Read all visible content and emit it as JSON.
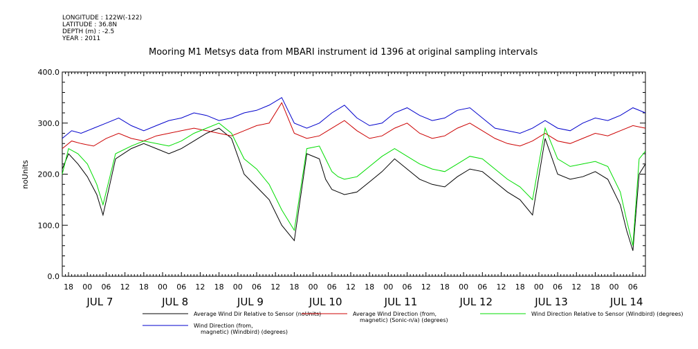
{
  "meta": {
    "longitude": "LONGITUDE : 122W(-122)",
    "latitude": "LATITUDE : 36.8N",
    "depth": "DEPTH (m) : -2.5",
    "year": "YEAR : 2011"
  },
  "chart_data": {
    "type": "line",
    "title": "Mooring M1 Metsys data from MBARI instrument id 1396 at original sampling intervals",
    "ylabel": "noUnits",
    "ylim": [
      0,
      400
    ],
    "yticks": [
      0,
      100,
      200,
      300,
      400
    ],
    "xlim_hours": [
      -8,
      178
    ],
    "x_unit": "hours from 2011-07-07 00:00",
    "hour_tick_labels": [
      {
        "h": -6,
        "label": "18"
      },
      {
        "h": 0,
        "label": "00"
      },
      {
        "h": 6,
        "label": "06"
      },
      {
        "h": 12,
        "label": "12"
      },
      {
        "h": 18,
        "label": "18"
      },
      {
        "h": 24,
        "label": "00"
      },
      {
        "h": 30,
        "label": "06"
      },
      {
        "h": 36,
        "label": "12"
      },
      {
        "h": 42,
        "label": "18"
      },
      {
        "h": 48,
        "label": "00"
      },
      {
        "h": 54,
        "label": "06"
      },
      {
        "h": 60,
        "label": "12"
      },
      {
        "h": 66,
        "label": "18"
      },
      {
        "h": 72,
        "label": "00"
      },
      {
        "h": 78,
        "label": "06"
      },
      {
        "h": 84,
        "label": "12"
      },
      {
        "h": 90,
        "label": "18"
      },
      {
        "h": 96,
        "label": "00"
      },
      {
        "h": 102,
        "label": "06"
      },
      {
        "h": 108,
        "label": "12"
      },
      {
        "h": 114,
        "label": "18"
      },
      {
        "h": 120,
        "label": "00"
      },
      {
        "h": 126,
        "label": "06"
      },
      {
        "h": 132,
        "label": "12"
      },
      {
        "h": 138,
        "label": "18"
      },
      {
        "h": 144,
        "label": "00"
      },
      {
        "h": 150,
        "label": "06"
      },
      {
        "h": 156,
        "label": "12"
      },
      {
        "h": 162,
        "label": "18"
      },
      {
        "h": 168,
        "label": "00"
      },
      {
        "h": 174,
        "label": "06"
      }
    ],
    "date_labels": [
      {
        "h": 4,
        "label": "JUL  7"
      },
      {
        "h": 28,
        "label": "JUL  8"
      },
      {
        "h": 52,
        "label": "JUL  9"
      },
      {
        "h": 76,
        "label": "JUL 10"
      },
      {
        "h": 100,
        "label": "JUL 11"
      },
      {
        "h": 124,
        "label": "JUL 12"
      },
      {
        "h": 148,
        "label": "JUL 13"
      },
      {
        "h": 172,
        "label": "JUL 14"
      }
    ],
    "series": [
      {
        "name": "Average Wind Dir Relative to Sensor (noUnits)",
        "color": "#000000",
        "x": [
          -8,
          -6,
          -3,
          0,
          3,
          5,
          9,
          14,
          18,
          22,
          26,
          30,
          34,
          38,
          42,
          46,
          50,
          54,
          58,
          62,
          66,
          70,
          74,
          76,
          78,
          80,
          82,
          86,
          90,
          94,
          98,
          102,
          106,
          108,
          110,
          114,
          118,
          122,
          126,
          130,
          134,
          138,
          142,
          146,
          150,
          154,
          158,
          162,
          166,
          170,
          172,
          174,
          176,
          178
        ],
        "values": [
          210,
          240,
          220,
          195,
          160,
          120,
          230,
          250,
          260,
          250,
          240,
          250,
          265,
          280,
          290,
          270,
          200,
          175,
          150,
          100,
          70,
          240,
          230,
          190,
          170,
          165,
          160,
          165,
          185,
          205,
          230,
          210,
          190,
          185,
          180,
          175,
          195,
          210,
          205,
          185,
          165,
          150,
          120,
          270,
          200,
          190,
          195,
          205,
          190,
          140,
          90,
          50,
          200,
          220
        ]
      },
      {
        "name": "Average Wind Direction (from, magnetic) (Sonic-n/a) (degrees)",
        "color": "#cc0000",
        "x": [
          -8,
          -5,
          -2,
          2,
          6,
          10,
          14,
          18,
          22,
          26,
          30,
          34,
          38,
          42,
          46,
          50,
          54,
          58,
          62,
          66,
          70,
          74,
          78,
          82,
          86,
          90,
          94,
          98,
          102,
          106,
          110,
          114,
          118,
          122,
          126,
          130,
          134,
          138,
          142,
          146,
          150,
          154,
          158,
          162,
          166,
          170,
          174,
          178
        ],
        "values": [
          250,
          265,
          260,
          255,
          270,
          280,
          270,
          265,
          275,
          280,
          285,
          290,
          285,
          280,
          275,
          285,
          295,
          300,
          340,
          280,
          270,
          275,
          290,
          305,
          285,
          270,
          275,
          290,
          300,
          280,
          270,
          275,
          290,
          300,
          285,
          270,
          260,
          255,
          265,
          280,
          265,
          260,
          270,
          280,
          275,
          285,
          295,
          290
        ]
      },
      {
        "name": "Wind Direction Relative to Sensor (Windbird) (degrees)",
        "color": "#00dd00",
        "x": [
          -8,
          -6,
          -3,
          0,
          3,
          5,
          9,
          14,
          18,
          22,
          26,
          30,
          34,
          38,
          42,
          46,
          50,
          54,
          58,
          62,
          66,
          70,
          74,
          76,
          78,
          80,
          82,
          86,
          90,
          94,
          98,
          102,
          106,
          108,
          110,
          114,
          118,
          122,
          126,
          130,
          134,
          138,
          142,
          146,
          150,
          154,
          158,
          162,
          166,
          170,
          172,
          174,
          176,
          178
        ],
        "values": [
          200,
          250,
          240,
          220,
          180,
          140,
          240,
          255,
          265,
          260,
          255,
          265,
          280,
          290,
          300,
          280,
          230,
          210,
          180,
          130,
          90,
          250,
          255,
          230,
          205,
          195,
          190,
          195,
          215,
          235,
          250,
          235,
          220,
          215,
          210,
          205,
          220,
          235,
          230,
          210,
          190,
          175,
          150,
          290,
          230,
          215,
          220,
          225,
          215,
          165,
          110,
          60,
          230,
          245
        ]
      },
      {
        "name": "Wind Direction (from, magnetic) (Windbird) (degrees)",
        "color": "#0000cc",
        "x": [
          -8,
          -5,
          -2,
          2,
          6,
          10,
          14,
          18,
          22,
          26,
          30,
          34,
          38,
          42,
          46,
          50,
          54,
          58,
          62,
          66,
          70,
          74,
          78,
          82,
          86,
          90,
          94,
          98,
          102,
          106,
          110,
          114,
          118,
          122,
          126,
          130,
          134,
          138,
          142,
          146,
          150,
          154,
          158,
          162,
          166,
          170,
          174,
          178
        ],
        "values": [
          270,
          285,
          280,
          290,
          300,
          310,
          295,
          285,
          295,
          305,
          310,
          320,
          315,
          305,
          310,
          320,
          325,
          335,
          350,
          300,
          290,
          300,
          320,
          335,
          310,
          295,
          300,
          320,
          330,
          315,
          305,
          310,
          325,
          330,
          310,
          290,
          285,
          280,
          290,
          305,
          290,
          285,
          300,
          310,
          305,
          315,
          330,
          320
        ]
      }
    ],
    "legend": [
      {
        "label_lines": [
          "Average Wind Dir Relative to Sensor (noUnits)"
        ],
        "color": "#000000"
      },
      {
        "label_lines": [
          "Average Wind Direction (from,",
          "magnetic) (Sonic-n/a) (degrees)"
        ],
        "color": "#cc0000"
      },
      {
        "label_lines": [
          "Wind Direction Relative to Sensor (Windbird) (degrees)"
        ],
        "color": "#00dd00"
      },
      {
        "label_lines": [
          "Wind Direction (from,",
          "magnetic) (Windbird) (degrees)"
        ],
        "color": "#0000cc"
      }
    ]
  }
}
